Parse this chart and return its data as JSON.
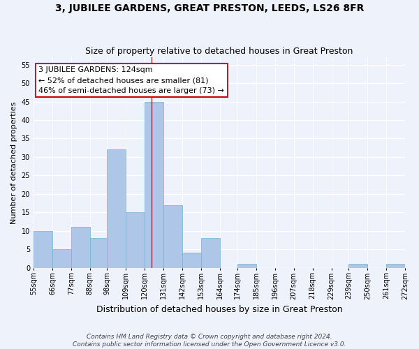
{
  "title": "3, JUBILEE GARDENS, GREAT PRESTON, LEEDS, LS26 8FR",
  "subtitle": "Size of property relative to detached houses in Great Preston",
  "xlabel": "Distribution of detached houses by size in Great Preston",
  "ylabel": "Number of detached properties",
  "bin_edges": [
    55,
    66,
    77,
    88,
    98,
    109,
    120,
    131,
    142,
    153,
    164,
    174,
    185,
    196,
    207,
    218,
    229,
    239,
    250,
    261,
    272
  ],
  "bin_labels": [
    "55sqm",
    "66sqm",
    "77sqm",
    "88sqm",
    "98sqm",
    "109sqm",
    "120sqm",
    "131sqm",
    "142sqm",
    "153sqm",
    "164sqm",
    "174sqm",
    "185sqm",
    "196sqm",
    "207sqm",
    "218sqm",
    "229sqm",
    "239sqm",
    "250sqm",
    "261sqm",
    "272sqm"
  ],
  "counts": [
    10,
    5,
    11,
    8,
    32,
    15,
    45,
    17,
    4,
    8,
    0,
    1,
    0,
    0,
    0,
    0,
    0,
    1,
    0,
    1
  ],
  "bar_color": "#aec6e8",
  "bar_edge_color": "#7aafd4",
  "redline_x": 124,
  "annotation_line1": "3 JUBILEE GARDENS: 124sqm",
  "annotation_line2": "← 52% of detached houses are smaller (81)",
  "annotation_line3": "46% of semi-detached houses are larger (73) →",
  "annotation_box_color": "#ffffff",
  "annotation_box_edge_color": "#cc0000",
  "ylim": [
    0,
    57
  ],
  "yticks": [
    0,
    5,
    10,
    15,
    20,
    25,
    30,
    35,
    40,
    45,
    50,
    55
  ],
  "footer_line1": "Contains HM Land Registry data © Crown copyright and database right 2024.",
  "footer_line2": "Contains public sector information licensed under the Open Government Licence v3.0.",
  "background_color": "#eef2fa",
  "grid_color": "#ffffff",
  "title_fontsize": 10,
  "subtitle_fontsize": 9,
  "xlabel_fontsize": 9,
  "ylabel_fontsize": 8,
  "tick_fontsize": 7,
  "annotation_fontsize": 8,
  "footer_fontsize": 6.5
}
